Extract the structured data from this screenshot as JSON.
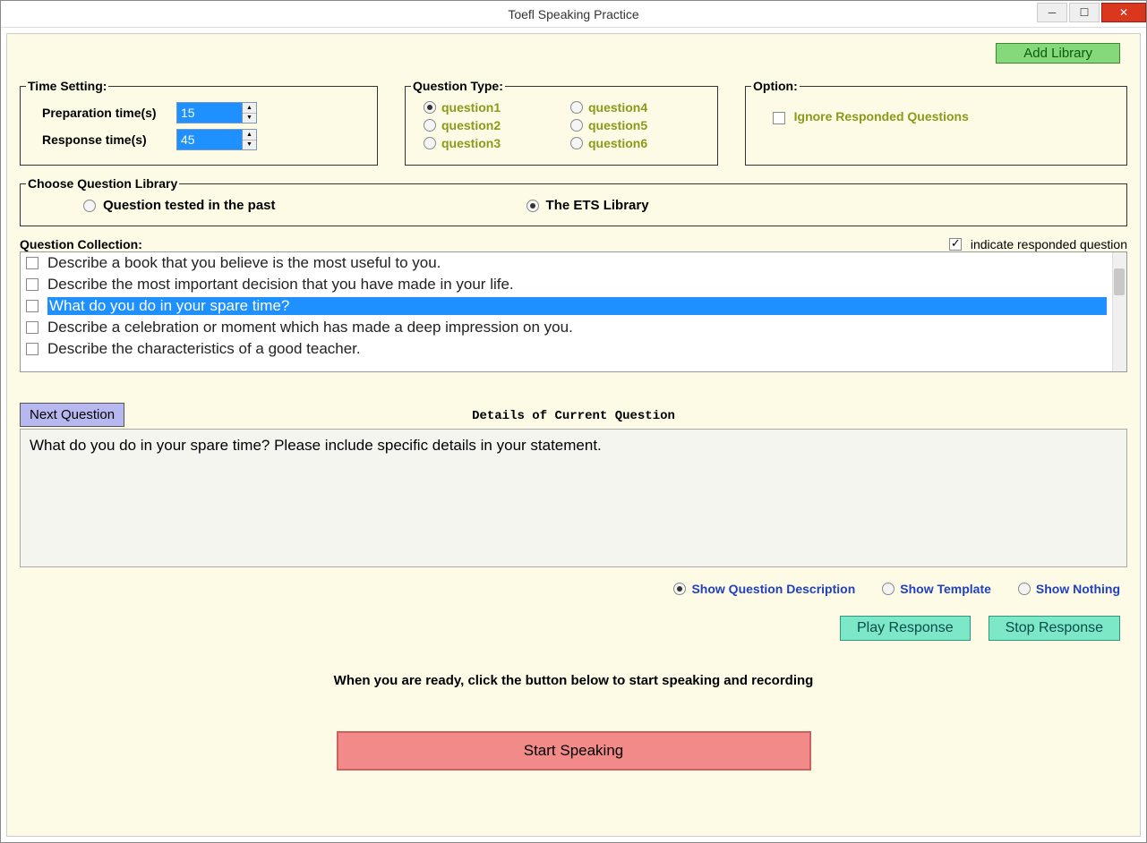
{
  "window": {
    "title": "Toefl Speaking Practice"
  },
  "buttons": {
    "add_library": "Add Library",
    "next_question": "Next Question",
    "play_response": "Play Response",
    "stop_response": "Stop Response",
    "start_speaking": "Start Speaking"
  },
  "time_setting": {
    "legend": "Time Setting:",
    "prep_label": "Preparation time(s)",
    "prep_value": "15",
    "resp_label": "Response time(s)",
    "resp_value": "45"
  },
  "question_type": {
    "legend": "Question Type:",
    "options": [
      "question1",
      "question2",
      "question3",
      "question4",
      "question5",
      "question6"
    ],
    "selected": 0
  },
  "option": {
    "legend": "Option:",
    "ignore_label": "Ignore Responded Questions",
    "ignore_checked": false
  },
  "library": {
    "legend": "Choose Question Library",
    "past_label": "Question tested in the past",
    "ets_label": "The ETS Library",
    "selected": "ets"
  },
  "collection": {
    "label": "Question Collection:",
    "indicate_label": "indicate responded question",
    "indicate_checked": true,
    "items": [
      "Describe a book that you believe is the most useful to you.",
      "Describe the most important decision that you have made in your life.",
      "What do you do in your spare time?",
      "Describe a celebration or moment which has made a deep impression on you.",
      "Describe the characteristics of a good teacher."
    ],
    "selected_index": 2
  },
  "details": {
    "title": "Details of Current Question",
    "text": "What do you do in your spare time? Please include specific details in your statement."
  },
  "show": {
    "desc": "Show Question Description",
    "tmpl": "Show Template",
    "nothing": "Show Nothing",
    "selected": "desc"
  },
  "ready_text": "When you are ready, click the button below to start speaking and recording",
  "colors": {
    "bg": "#fdfbe6",
    "highlight": "#1e90ff",
    "add_btn": "#85d97a",
    "next_btn": "#b8b8f0",
    "teal_btn": "#7ce8c8",
    "start_btn": "#f28a8a",
    "olive_text": "#8a9a1a",
    "link_text": "#2040c0"
  }
}
